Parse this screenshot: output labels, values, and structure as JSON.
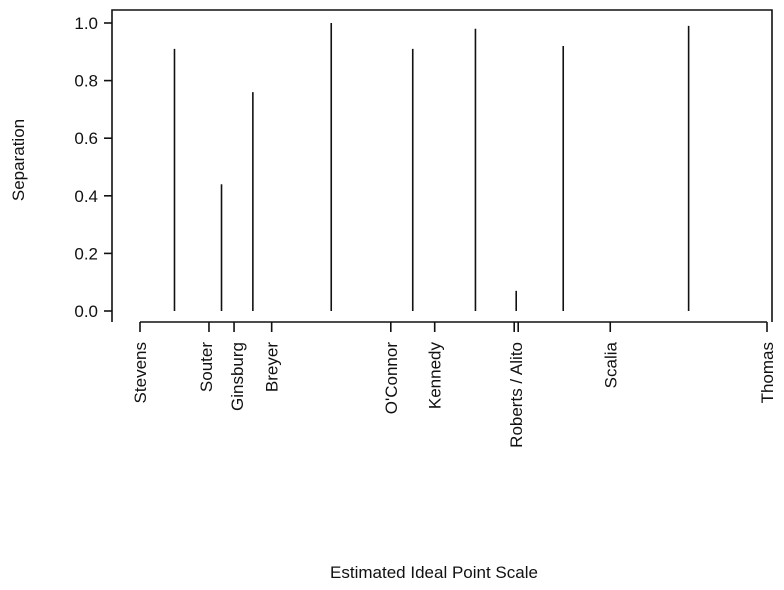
{
  "chart_data": {
    "type": "bar",
    "title": "",
    "xlabel": "Estimated Ideal Point Scale",
    "ylabel": "Separation",
    "ylim": [
      0,
      1
    ],
    "yticks": [
      "0.0",
      "0.2",
      "0.4",
      "0.6",
      "0.8",
      "1.0"
    ],
    "grid": false,
    "justices": [
      {
        "name": "Stevens",
        "position": 0.0
      },
      {
        "name": "Souter",
        "position": 0.11
      },
      {
        "name": "Ginsburg",
        "position": 0.15
      },
      {
        "name": "Breyer",
        "position": 0.21
      },
      {
        "name": "O'Connor",
        "position": 0.4
      },
      {
        "name": "Kennedy",
        "position": 0.47
      },
      {
        "name": "Roberts / Alito",
        "position": 0.6
      },
      {
        "name": "Scalia",
        "position": 0.75
      },
      {
        "name": "Thomas",
        "position": 1.0
      }
    ],
    "separations": [
      {
        "between": [
          "Stevens",
          "Souter"
        ],
        "value": 0.91
      },
      {
        "between": [
          "Souter",
          "Ginsburg"
        ],
        "value": 0.44
      },
      {
        "between": [
          "Ginsburg",
          "Breyer"
        ],
        "value": 0.76
      },
      {
        "between": [
          "Breyer",
          "O'Connor"
        ],
        "value": 1.0
      },
      {
        "between": [
          "O'Connor",
          "Kennedy"
        ],
        "value": 0.91
      },
      {
        "between": [
          "Kennedy",
          "Roberts / Alito"
        ],
        "value": 0.98
      },
      {
        "between": [
          "Roberts",
          "Alito"
        ],
        "value": 0.07
      },
      {
        "between": [
          "Roberts / Alito",
          "Scalia"
        ],
        "value": 0.92
      },
      {
        "between": [
          "Scalia",
          "Thomas"
        ],
        "value": 0.99
      }
    ]
  }
}
